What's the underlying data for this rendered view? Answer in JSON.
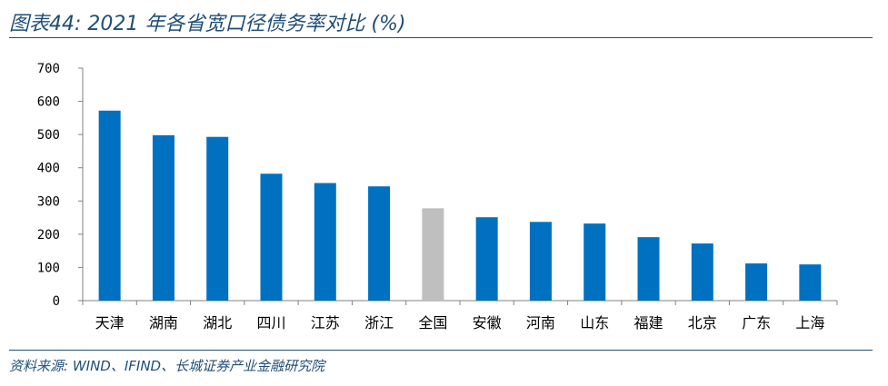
{
  "header": {
    "title": "图表44:  2021 年各省宽口径债务率对比 (%)"
  },
  "footer": {
    "source": "资料来源:  WIND、IFIND、长城证券产业金融研究院"
  },
  "colors": {
    "bar": "#0070c0",
    "highlight": "#bfbfbf",
    "rule": "#1f4e79"
  },
  "chart_data": {
    "type": "bar",
    "categories": [
      "天津",
      "湖南",
      "湖北",
      "四川",
      "江苏",
      "浙江",
      "全国",
      "安徽",
      "河南",
      "山东",
      "福建",
      "北京",
      "广东",
      "上海"
    ],
    "values": [
      572,
      498,
      493,
      382,
      354,
      344,
      278,
      251,
      237,
      232,
      191,
      172,
      112,
      109
    ],
    "highlight_category": "全国",
    "ylim": [
      0,
      700
    ],
    "yticks": [
      0,
      100,
      200,
      300,
      400,
      500,
      600,
      700
    ],
    "grid": false,
    "xlabel": "",
    "ylabel": ""
  }
}
